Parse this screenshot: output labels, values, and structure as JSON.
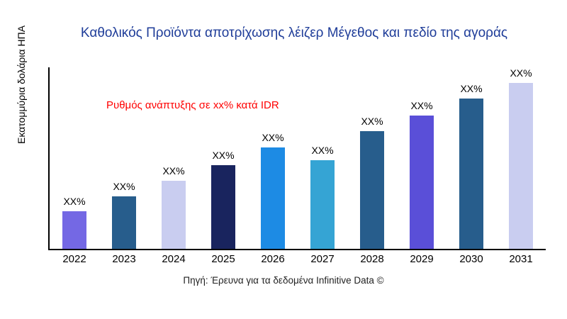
{
  "title": "Καθολικός Προϊόντα αποτρίχωσης λέιζερ Μέγεθος και πεδίο της αγοράς",
  "y_axis_label": "Εκατομμύρια δολάρια ΗΠΑ",
  "annotation": {
    "text": "Ρυθμός ανάπτυξης σε xx% κατά IDR",
    "color": "#ff0000"
  },
  "source": "Πηγή: Έρευνα για τα δεδομένα Infinitive Data ©",
  "colors": {
    "title": "#1f3d99",
    "axis": "#000000"
  },
  "chart_data": {
    "type": "bar",
    "title": "Καθολικός Προϊόντα αποτρίχωσης λέιζερ Μέγεθος και πεδίο της αγοράς",
    "xlabel": "",
    "ylabel": "Εκατομμύρια δολάρια ΗΠΑ",
    "categories": [
      "2022",
      "2023",
      "2024",
      "2025",
      "2026",
      "2027",
      "2028",
      "2029",
      "2030",
      "2031"
    ],
    "values": [
      52,
      72,
      94,
      115,
      140,
      122,
      162,
      184,
      207,
      232
    ],
    "bar_labels": [
      "XX%",
      "XX%",
      "XX%",
      "XX%",
      "XX%",
      "XX%",
      "XX%",
      "XX%",
      "XX%",
      "XX%"
    ],
    "bar_colors": [
      "#7468e4",
      "#275d8c",
      "#c9cdf0",
      "#19245e",
      "#1d8be4",
      "#35a4d4",
      "#275d8c",
      "#5a4fd8",
      "#275d8c",
      "#c9cdf0"
    ],
    "ylim": [
      0,
      250
    ],
    "grid": false,
    "legend": "none",
    "annotation": "Ρυθμός ανάπτυξης σε xx% κατά IDR"
  }
}
